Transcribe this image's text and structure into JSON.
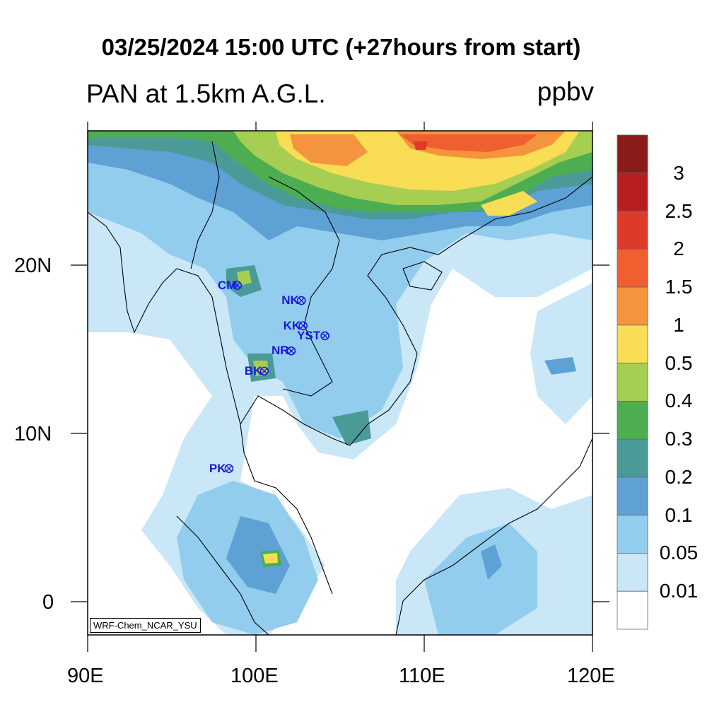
{
  "title": "03/25/2024 15:00 UTC (+27hours from start)",
  "subtitle_left": "PAN at 1.5km A.G.L.",
  "units": "ppbv",
  "model_label": "WRF-Chem_NCAR_YSU",
  "axes": {
    "x_ticks": [
      "90E",
      "100E",
      "110E",
      "120E"
    ],
    "y_ticks": [
      "20N",
      "10N",
      "0"
    ]
  },
  "colorbar": {
    "labels": [
      "3",
      "2.5",
      "2",
      "1.5",
      "1",
      "0.5",
      "0.4",
      "0.3",
      "0.2",
      "0.1",
      "0.05",
      "0.01"
    ],
    "colors": [
      "#8b1a1a",
      "#b81e1e",
      "#de3a2a",
      "#ef5f30",
      "#f5943e",
      "#f8dd55",
      "#a6ce52",
      "#4cae50",
      "#4a9a98",
      "#5ea1d4",
      "#93cdee",
      "#c9e7f7",
      "#ffffff"
    ]
  },
  "stations": [
    {
      "label": "CM",
      "lon": 98.9,
      "lat": 18.8
    },
    {
      "label": "NK",
      "lon": 102.7,
      "lat": 17.9
    },
    {
      "label": "KK",
      "lon": 102.8,
      "lat": 16.4
    },
    {
      "label": "YST",
      "lon": 104.1,
      "lat": 15.8
    },
    {
      "label": "NR",
      "lon": 102.1,
      "lat": 14.9
    },
    {
      "label": "BK",
      "lon": 100.5,
      "lat": 13.7
    },
    {
      "label": "PK",
      "lon": 98.4,
      "lat": 7.9
    }
  ]
}
